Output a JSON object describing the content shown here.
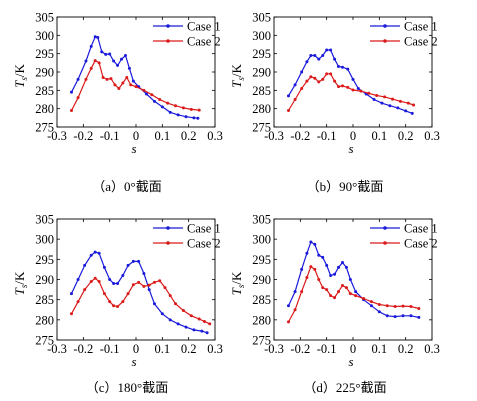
{
  "chart_data": [
    {
      "type": "line",
      "caption": "（a）0°截面",
      "xlabel": "s",
      "ylabel": "T",
      "ylabel_sub": "s",
      "ylabel_unit": "/K",
      "xlim": [
        -0.3,
        0.3
      ],
      "ylim": [
        275,
        305
      ],
      "xticks": [
        "-0.3",
        "-0.2",
        "-0.1",
        "0",
        "0.1",
        "0.2",
        "0.3"
      ],
      "yticks": [
        "275",
        "280",
        "285",
        "290",
        "295",
        "300",
        "305"
      ],
      "legend_position": "top-right",
      "series": [
        {
          "name": "Case 1",
          "color": "#1a1adc",
          "points": [
            [
              -0.245,
              284.5
            ],
            [
              -0.22,
              288
            ],
            [
              -0.19,
              293
            ],
            [
              -0.17,
              297
            ],
            [
              -0.155,
              299.6
            ],
            [
              -0.145,
              299.4
            ],
            [
              -0.13,
              295.5
            ],
            [
              -0.115,
              294.8
            ],
            [
              -0.1,
              294.9
            ],
            [
              -0.085,
              293
            ],
            [
              -0.07,
              291.8
            ],
            [
              -0.055,
              293.5
            ],
            [
              -0.04,
              294.5
            ],
            [
              -0.025,
              291
            ],
            [
              -0.01,
              287.5
            ],
            [
              0.01,
              286
            ],
            [
              0.04,
              284
            ],
            [
              0.07,
              282
            ],
            [
              0.1,
              280.5
            ],
            [
              0.13,
              279
            ],
            [
              0.16,
              278.3
            ],
            [
              0.19,
              277.8
            ],
            [
              0.22,
              277.5
            ],
            [
              0.235,
              277.4
            ]
          ]
        },
        {
          "name": "Case 2",
          "color": "#dc1a1a",
          "points": [
            [
              -0.245,
              279.5
            ],
            [
              -0.22,
              283
            ],
            [
              -0.19,
              288
            ],
            [
              -0.17,
              291
            ],
            [
              -0.155,
              293.1
            ],
            [
              -0.14,
              292.5
            ],
            [
              -0.125,
              288.5
            ],
            [
              -0.11,
              288
            ],
            [
              -0.095,
              288.2
            ],
            [
              -0.08,
              286.5
            ],
            [
              -0.065,
              285.5
            ],
            [
              -0.05,
              287
            ],
            [
              -0.035,
              288.5
            ],
            [
              -0.02,
              286.5
            ],
            [
              0,
              286
            ],
            [
              0.03,
              285
            ],
            [
              0.06,
              283.8
            ],
            [
              0.09,
              282.5
            ],
            [
              0.12,
              281.5
            ],
            [
              0.15,
              280.8
            ],
            [
              0.18,
              280.2
            ],
            [
              0.21,
              279.8
            ],
            [
              0.24,
              279.6
            ]
          ]
        }
      ]
    },
    {
      "type": "line",
      "caption": "（b）90°截面",
      "xlabel": "s",
      "ylabel": "T",
      "ylabel_sub": "s",
      "ylabel_unit": "/K",
      "xlim": [
        -0.3,
        0.3
      ],
      "ylim": [
        275,
        305
      ],
      "xticks": [
        "-0.3",
        "-0.2",
        "-0.1",
        "0",
        "0.1",
        "0.2",
        "0.3"
      ],
      "yticks": [
        "275",
        "280",
        "285",
        "290",
        "295",
        "300",
        "305"
      ],
      "legend_position": "top-right",
      "series": [
        {
          "name": "Case 1",
          "color": "#1a1adc",
          "points": [
            [
              -0.245,
              283.5
            ],
            [
              -0.22,
              286.5
            ],
            [
              -0.195,
              290
            ],
            [
              -0.175,
              292.8
            ],
            [
              -0.16,
              294.5
            ],
            [
              -0.145,
              294.5
            ],
            [
              -0.13,
              293.5
            ],
            [
              -0.115,
              294.5
            ],
            [
              -0.1,
              296
            ],
            [
              -0.085,
              296
            ],
            [
              -0.07,
              293.5
            ],
            [
              -0.055,
              291.5
            ],
            [
              -0.04,
              291.3
            ],
            [
              -0.02,
              290.8
            ],
            [
              0,
              288
            ],
            [
              0.02,
              285.5
            ],
            [
              0.05,
              284
            ],
            [
              0.08,
              282.5
            ],
            [
              0.11,
              281.5
            ],
            [
              0.14,
              280.8
            ],
            [
              0.17,
              280.2
            ],
            [
              0.2,
              279.4
            ],
            [
              0.225,
              278.7
            ]
          ]
        },
        {
          "name": "Case 2",
          "color": "#dc1a1a",
          "points": [
            [
              -0.245,
              279.5
            ],
            [
              -0.22,
              282.5
            ],
            [
              -0.195,
              285.5
            ],
            [
              -0.175,
              287.5
            ],
            [
              -0.16,
              288.7
            ],
            [
              -0.145,
              288.3
            ],
            [
              -0.13,
              287.3
            ],
            [
              -0.115,
              288
            ],
            [
              -0.1,
              289.5
            ],
            [
              -0.085,
              289.5
            ],
            [
              -0.07,
              287.5
            ],
            [
              -0.055,
              286
            ],
            [
              -0.04,
              286.2
            ],
            [
              -0.02,
              285.8
            ],
            [
              0,
              285.1
            ],
            [
              0.03,
              284.8
            ],
            [
              0.06,
              284.2
            ],
            [
              0.09,
              283.6
            ],
            [
              0.12,
              283.2
            ],
            [
              0.15,
              282.6
            ],
            [
              0.18,
              282
            ],
            [
              0.21,
              281.5
            ],
            [
              0.23,
              281
            ]
          ]
        }
      ]
    },
    {
      "type": "line",
      "caption": "（c）180°截面",
      "xlabel": "s",
      "ylabel": "T",
      "ylabel_sub": "s",
      "ylabel_unit": "/K",
      "xlim": [
        -0.3,
        0.3
      ],
      "ylim": [
        275,
        305
      ],
      "xticks": [
        "-0.3",
        "-0.2",
        "-0.1",
        "0",
        "0.1",
        "0.2",
        "0.3"
      ],
      "yticks": [
        "275",
        "280",
        "285",
        "290",
        "295",
        "300",
        "305"
      ],
      "legend_position": "top-right",
      "series": [
        {
          "name": "Case 1",
          "color": "#1a1adc",
          "points": [
            [
              -0.245,
              286.5
            ],
            [
              -0.22,
              290
            ],
            [
              -0.195,
              293.5
            ],
            [
              -0.17,
              296
            ],
            [
              -0.155,
              296.8
            ],
            [
              -0.14,
              296.5
            ],
            [
              -0.12,
              293
            ],
            [
              -0.1,
              290
            ],
            [
              -0.085,
              289
            ],
            [
              -0.07,
              289
            ],
            [
              -0.05,
              291
            ],
            [
              -0.03,
              293.5
            ],
            [
              -0.01,
              294.5
            ],
            [
              0.01,
              294.5
            ],
            [
              0.03,
              291.5
            ],
            [
              0.05,
              287.5
            ],
            [
              0.07,
              284
            ],
            [
              0.1,
              281.5
            ],
            [
              0.13,
              280
            ],
            [
              0.16,
              279
            ],
            [
              0.19,
              278.2
            ],
            [
              0.22,
              277.5
            ],
            [
              0.25,
              277.2
            ],
            [
              0.27,
              276.8
            ]
          ]
        },
        {
          "name": "Case 2",
          "color": "#dc1a1a",
          "points": [
            [
              -0.245,
              281.5
            ],
            [
              -0.22,
              284.5
            ],
            [
              -0.195,
              287.5
            ],
            [
              -0.17,
              289.5
            ],
            [
              -0.155,
              290.3
            ],
            [
              -0.14,
              289.5
            ],
            [
              -0.12,
              286.5
            ],
            [
              -0.1,
              284.5
            ],
            [
              -0.085,
              283.5
            ],
            [
              -0.07,
              283.3
            ],
            [
              -0.05,
              284.5
            ],
            [
              -0.03,
              286.5
            ],
            [
              -0.01,
              288.7
            ],
            [
              0.01,
              289.3
            ],
            [
              0.03,
              288.3
            ],
            [
              0.05,
              288.6
            ],
            [
              0.07,
              289.3
            ],
            [
              0.09,
              289.7
            ],
            [
              0.11,
              288
            ],
            [
              0.13,
              286
            ],
            [
              0.15,
              284
            ],
            [
              0.18,
              282.3
            ],
            [
              0.21,
              281
            ],
            [
              0.24,
              280.2
            ],
            [
              0.26,
              279.6
            ],
            [
              0.28,
              279
            ]
          ]
        }
      ]
    },
    {
      "type": "line",
      "caption": "（d）225°截面",
      "xlabel": "s",
      "ylabel": "T",
      "ylabel_sub": "s",
      "ylabel_unit": "/K",
      "xlim": [
        -0.3,
        0.3
      ],
      "ylim": [
        275,
        305
      ],
      "xticks": [
        "-0.3",
        "-0.2",
        "-0.1",
        "0",
        "0.1",
        "0.2",
        "0.3"
      ],
      "yticks": [
        "275",
        "280",
        "285",
        "290",
        "295",
        "300",
        "305"
      ],
      "legend_position": "top-right",
      "series": [
        {
          "name": "Case 1",
          "color": "#1a1adc",
          "points": [
            [
              -0.245,
              283.5
            ],
            [
              -0.22,
              287
            ],
            [
              -0.195,
              292.5
            ],
            [
              -0.175,
              296.5
            ],
            [
              -0.16,
              299.3
            ],
            [
              -0.145,
              298.7
            ],
            [
              -0.13,
              296
            ],
            [
              -0.115,
              295.5
            ],
            [
              -0.1,
              293.5
            ],
            [
              -0.085,
              291
            ],
            [
              -0.07,
              291.3
            ],
            [
              -0.055,
              293
            ],
            [
              -0.04,
              294.2
            ],
            [
              -0.025,
              293
            ],
            [
              -0.01,
              290
            ],
            [
              0.01,
              287
            ],
            [
              0.04,
              285
            ],
            [
              0.07,
              283.5
            ],
            [
              0.1,
              282
            ],
            [
              0.13,
              281
            ],
            [
              0.16,
              280.8
            ],
            [
              0.19,
              281
            ],
            [
              0.22,
              281
            ],
            [
              0.25,
              280.6
            ]
          ]
        },
        {
          "name": "Case 2",
          "color": "#dc1a1a",
          "points": [
            [
              -0.245,
              279.5
            ],
            [
              -0.22,
              282.5
            ],
            [
              -0.195,
              287
            ],
            [
              -0.175,
              290.5
            ],
            [
              -0.16,
              293.2
            ],
            [
              -0.145,
              292.5
            ],
            [
              -0.13,
              290
            ],
            [
              -0.115,
              288
            ],
            [
              -0.1,
              287.5
            ],
            [
              -0.085,
              286
            ],
            [
              -0.07,
              285.5
            ],
            [
              -0.055,
              287
            ],
            [
              -0.04,
              288.5
            ],
            [
              -0.025,
              288
            ],
            [
              -0.01,
              286.5
            ],
            [
              0.01,
              286
            ],
            [
              0.04,
              285.3
            ],
            [
              0.07,
              284.5
            ],
            [
              0.1,
              283.8
            ],
            [
              0.13,
              283.5
            ],
            [
              0.16,
              283.3
            ],
            [
              0.19,
              283.4
            ],
            [
              0.22,
              283.3
            ],
            [
              0.25,
              282.8
            ]
          ]
        }
      ]
    }
  ]
}
